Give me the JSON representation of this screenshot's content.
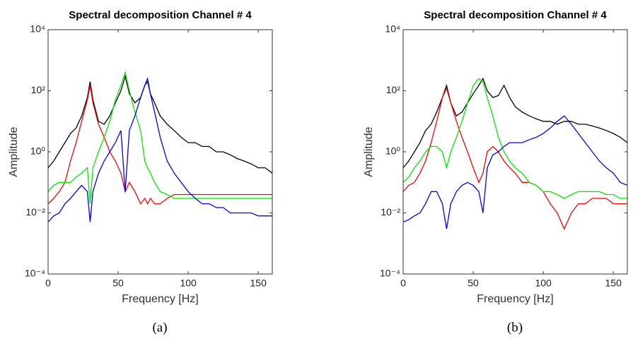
{
  "chart_data": [
    {
      "type": "line",
      "title": "Spectral decomposition Channel # 4",
      "x_label": "Frequency [Hz]",
      "y_label": "Amplitude",
      "caption": "(a)",
      "yscale": "log",
      "xlim": [
        0,
        160
      ],
      "xticks": [
        0,
        50,
        100,
        150
      ],
      "ylim": [
        0.0001,
        10000
      ],
      "yticks": [
        {
          "value": 0.0001,
          "label": "10⁻⁴"
        },
        {
          "value": 0.01,
          "label": "10⁻²"
        },
        {
          "value": 1,
          "label": "10⁰"
        },
        {
          "value": 100,
          "label": "10²"
        },
        {
          "value": 10000,
          "label": "10⁴"
        }
      ],
      "x": [
        0,
        4,
        8,
        12,
        16,
        20,
        24,
        28,
        30,
        32,
        36,
        40,
        44,
        48,
        52,
        55,
        58,
        62,
        66,
        69,
        71,
        73,
        76,
        80,
        85,
        90,
        95,
        100,
        105,
        110,
        115,
        120,
        125,
        130,
        135,
        140,
        145,
        150,
        155,
        160
      ],
      "series": [
        {
          "color": "#000000",
          "values": [
            0.3,
            0.5,
            1,
            2,
            4,
            6,
            15,
            60,
            200,
            50,
            10,
            8,
            15,
            40,
            100,
            300,
            80,
            40,
            60,
            150,
            200,
            80,
            40,
            15,
            8,
            5,
            3,
            2,
            2,
            1.5,
            1.5,
            1,
            1,
            0.8,
            0.6,
            0.5,
            0.4,
            0.3,
            0.3,
            0.2
          ]
        },
        {
          "color": "#ff0000",
          "values": [
            0.02,
            0.03,
            0.05,
            0.1,
            0.5,
            2,
            10,
            50,
            150,
            40,
            8,
            3,
            1,
            0.5,
            0.2,
            0.05,
            0.1,
            0.05,
            0.02,
            0.03,
            0.02,
            0.03,
            0.02,
            0.02,
            0.03,
            0.04,
            0.04,
            0.04,
            0.04,
            0.04,
            0.04,
            0.04,
            0.04,
            0.04,
            0.04,
            0.04,
            0.04,
            0.04,
            0.04,
            0.04
          ]
        },
        {
          "color": "#00ee00",
          "values": [
            0.05,
            0.08,
            0.1,
            0.1,
            0.1,
            0.15,
            0.2,
            0.3,
            0.02,
            0.3,
            1,
            3,
            10,
            50,
            150,
            400,
            100,
            20,
            5,
            0.5,
            0.3,
            0.2,
            0.1,
            0.05,
            0.04,
            0.03,
            0.03,
            0.03,
            0.03,
            0.03,
            0.03,
            0.03,
            0.03,
            0.03,
            0.03,
            0.03,
            0.03,
            0.03,
            0.03,
            0.03
          ]
        },
        {
          "color": "#0000ff",
          "values": [
            0.005,
            0.008,
            0.01,
            0.02,
            0.03,
            0.05,
            0.08,
            0.05,
            0.005,
            0.05,
            0.2,
            0.5,
            1,
            2,
            5,
            0.05,
            5,
            15,
            60,
            150,
            250,
            80,
            20,
            3,
            0.5,
            0.2,
            0.1,
            0.05,
            0.03,
            0.02,
            0.02,
            0.015,
            0.015,
            0.01,
            0.01,
            0.01,
            0.01,
            0.008,
            0.008,
            0.008
          ]
        }
      ]
    },
    {
      "type": "line",
      "title": "Spectral decomposition Channel # 4",
      "x_label": "Frequency [Hz]",
      "y_label": "Amplitude",
      "caption": "(b)",
      "yscale": "log",
      "xlim": [
        0,
        160
      ],
      "xticks": [
        0,
        50,
        100,
        150
      ],
      "ylim": [
        0.0001,
        10000
      ],
      "yticks": [
        {
          "value": 0.0001,
          "label": "10⁻⁴"
        },
        {
          "value": 0.01,
          "label": "10⁻²"
        },
        {
          "value": 1,
          "label": "10⁰"
        },
        {
          "value": 100,
          "label": "10²"
        },
        {
          "value": 10000,
          "label": "10⁴"
        }
      ],
      "x": [
        0,
        4,
        8,
        12,
        16,
        20,
        24,
        28,
        31,
        34,
        38,
        42,
        46,
        50,
        54,
        57,
        60,
        64,
        68,
        72,
        76,
        80,
        85,
        90,
        95,
        100,
        105,
        110,
        115,
        120,
        125,
        130,
        135,
        140,
        145,
        150,
        155,
        160
      ],
      "series": [
        {
          "color": "#000000",
          "values": [
            0.3,
            0.5,
            1,
            2,
            5,
            8,
            20,
            60,
            150,
            40,
            15,
            20,
            40,
            80,
            150,
            250,
            100,
            60,
            70,
            150,
            60,
            30,
            20,
            15,
            12,
            10,
            10,
            8,
            10,
            10,
            8,
            8,
            7,
            6,
            5,
            4,
            3,
            2
          ]
        },
        {
          "color": "#ff0000",
          "values": [
            0.05,
            0.08,
            0.1,
            0.2,
            0.5,
            2,
            10,
            60,
            120,
            40,
            10,
            3,
            1,
            0.3,
            0.1,
            0.2,
            1,
            1.5,
            1,
            0.5,
            0.3,
            0.2,
            0.1,
            0.1,
            0.08,
            0.05,
            0.02,
            0.01,
            0.003,
            0.01,
            0.02,
            0.02,
            0.03,
            0.03,
            0.03,
            0.02,
            0.02,
            0.02
          ]
        },
        {
          "color": "#00ee00",
          "values": [
            0.1,
            0.15,
            0.3,
            0.5,
            1,
            1.5,
            1.5,
            1,
            0.3,
            1,
            3,
            10,
            40,
            150,
            250,
            200,
            60,
            15,
            3,
            1,
            0.5,
            0.3,
            0.2,
            0.1,
            0.08,
            0.05,
            0.05,
            0.04,
            0.03,
            0.04,
            0.05,
            0.05,
            0.05,
            0.05,
            0.04,
            0.04,
            0.03,
            0.03
          ]
        },
        {
          "color": "#0000ff",
          "values": [
            0.005,
            0.006,
            0.008,
            0.01,
            0.02,
            0.05,
            0.05,
            0.02,
            0.003,
            0.02,
            0.05,
            0.08,
            0.1,
            0.08,
            0.05,
            0.01,
            0.3,
            0.8,
            1,
            1.5,
            2,
            2,
            2,
            2.5,
            3,
            4,
            6,
            10,
            15,
            8,
            4,
            2,
            1,
            0.5,
            0.3,
            0.2,
            0.1,
            0.08
          ]
        }
      ]
    }
  ]
}
